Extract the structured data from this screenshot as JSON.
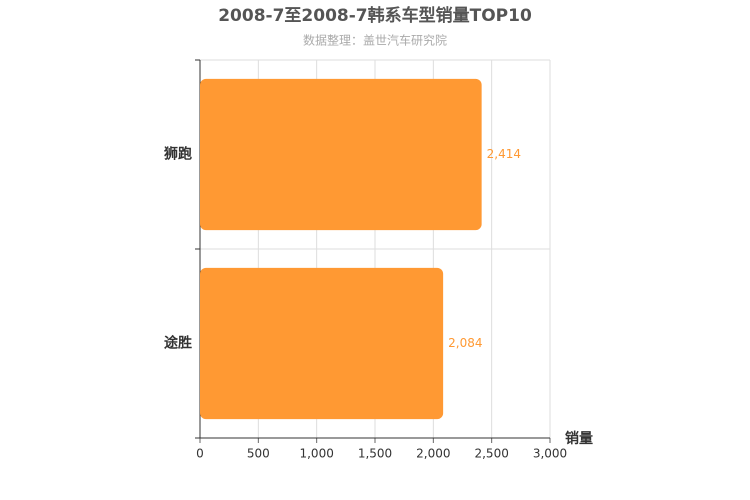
{
  "chart_data": {
    "type": "bar",
    "orientation": "horizontal",
    "title": "2008-7至2008-7韩系车型销量TOP10",
    "subtitle": "数据整理：盖世汽车研究院",
    "x_label": "销量",
    "categories": [
      "狮跑",
      "途胜"
    ],
    "values": [
      2414,
      2084
    ],
    "value_labels": [
      "2,414",
      "2,084"
    ],
    "color": "#ff9933",
    "xlim": [
      0,
      3000
    ],
    "xticks": [
      0,
      500,
      {
        "value": 1000,
        "label": "1,000"
      },
      {
        "value": 1500,
        "label": "1,500"
      },
      {
        "value": 2000,
        "label": "2,000"
      },
      {
        "value": 2500,
        "label": "2,500"
      },
      {
        "value": 3000,
        "label": "3,000"
      }
    ],
    "grid": true
  }
}
